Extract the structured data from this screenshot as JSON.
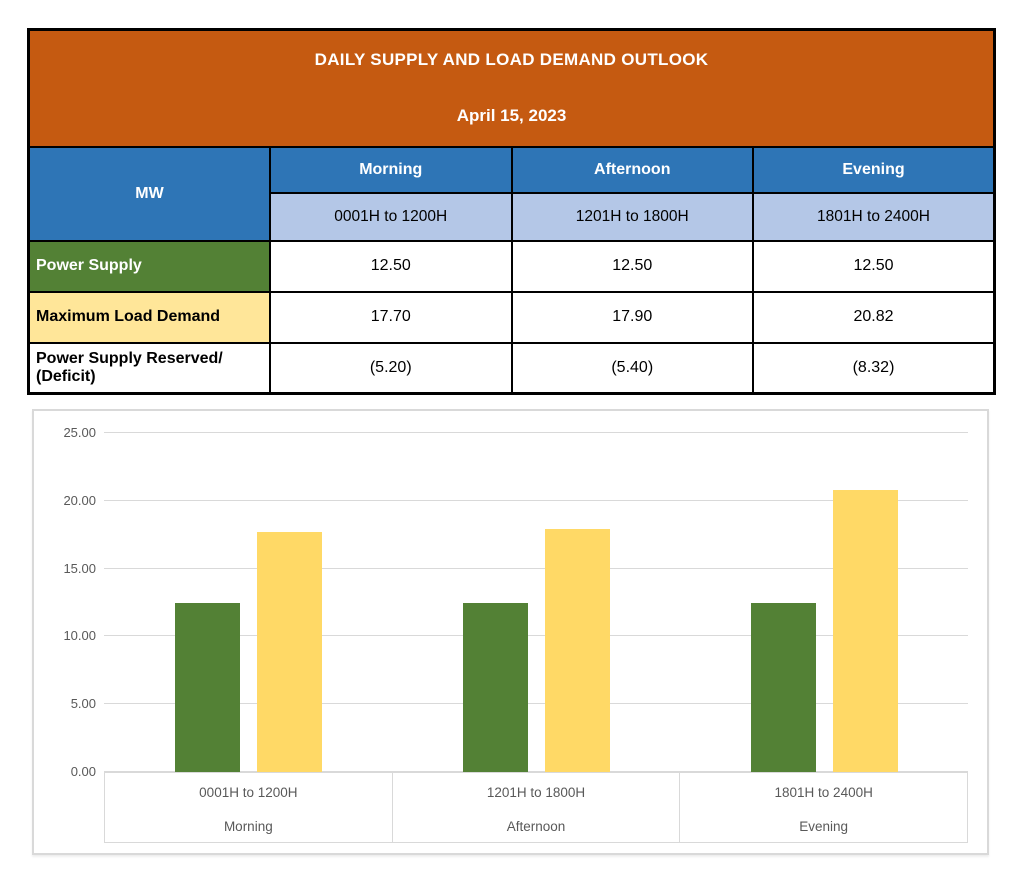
{
  "table": {
    "title": "DAILY SUPPLY AND LOAD DEMAND OUTLOOK",
    "date": "April 15, 2023",
    "unit_header": "MW",
    "periods": [
      {
        "name": "Morning",
        "hours": "0001H to 1200H"
      },
      {
        "name": "Afternoon",
        "hours": "1201H to 1800H"
      },
      {
        "name": "Evening",
        "hours": "1801H to 2400H"
      }
    ],
    "rows": [
      {
        "label": "Power Supply",
        "values": [
          "12.50",
          "12.50",
          "12.50"
        ]
      },
      {
        "label": "Maximum Load Demand",
        "values": [
          "17.70",
          "17.90",
          "20.82"
        ]
      },
      {
        "label": "Power Supply Reserved/ (Deficit)",
        "values": [
          "(5.20)",
          "(5.40)",
          "(8.32)"
        ]
      }
    ]
  },
  "chart_data": {
    "type": "bar",
    "title": "",
    "xlabel": "",
    "ylabel": "",
    "categories": [
      {
        "hours": "0001H to 1200H",
        "period": "Morning"
      },
      {
        "hours": "1201H to 1800H",
        "period": "Afternoon"
      },
      {
        "hours": "1801H to 2400H",
        "period": "Evening"
      }
    ],
    "series": [
      {
        "name": "Power Supply",
        "color": "#538135",
        "values": [
          12.5,
          12.5,
          12.5
        ]
      },
      {
        "name": "Maximum Load Demand",
        "color": "#FFD966",
        "values": [
          17.7,
          17.9,
          20.82
        ]
      }
    ],
    "ylim": [
      0,
      25
    ],
    "yticks": [
      {
        "value": 0,
        "label": "0.00"
      },
      {
        "value": 5,
        "label": "5.00"
      },
      {
        "value": 10,
        "label": "10.00"
      },
      {
        "value": 15,
        "label": "15.00"
      },
      {
        "value": 20,
        "label": "20.00"
      },
      {
        "value": 25,
        "label": "25.00"
      }
    ],
    "grid": true,
    "legend": "none"
  },
  "colors": {
    "header_orange": "#C55A11",
    "header_blue": "#2E75B6",
    "subheader_blue": "#B4C7E7",
    "supply_green": "#538135",
    "demand_yellow_row": "#FFE699",
    "demand_yellow_bar": "#FFD966",
    "grid_gray": "#D9D9D9",
    "axis_text_gray": "#595959"
  }
}
